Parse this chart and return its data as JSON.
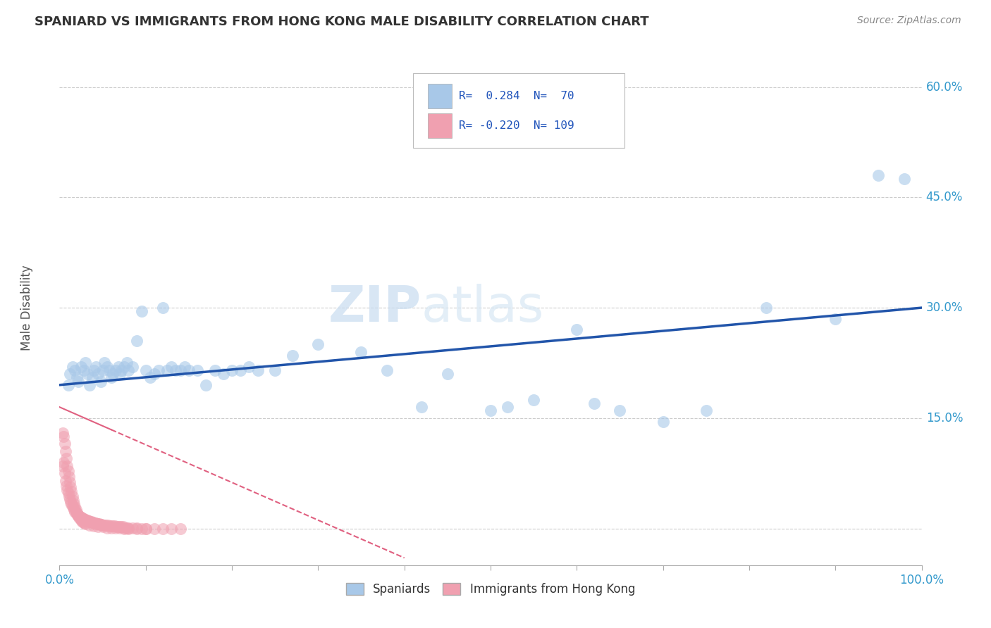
{
  "title": "SPANIARD VS IMMIGRANTS FROM HONG KONG MALE DISABILITY CORRELATION CHART",
  "source": "Source: ZipAtlas.com",
  "ylabel": "Male Disability",
  "yticks": [
    0.0,
    0.15,
    0.3,
    0.45,
    0.6
  ],
  "ytick_labels": [
    "",
    "15.0%",
    "30.0%",
    "45.0%",
    "60.0%"
  ],
  "xmin": 0.0,
  "xmax": 1.0,
  "ymin": -0.05,
  "ymax": 0.65,
  "blue_color": "#A8C8E8",
  "pink_color": "#F0A0B0",
  "trend_blue": "#2255AA",
  "trend_pink": "#E06080",
  "legend_blue_label": "Spaniards",
  "legend_pink_label": "Immigrants from Hong Kong",
  "spaniards_x": [
    0.01,
    0.012,
    0.015,
    0.018,
    0.02,
    0.022,
    0.025,
    0.028,
    0.03,
    0.032,
    0.035,
    0.038,
    0.04,
    0.042,
    0.045,
    0.048,
    0.05,
    0.052,
    0.055,
    0.058,
    0.06,
    0.062,
    0.065,
    0.068,
    0.07,
    0.072,
    0.075,
    0.078,
    0.08,
    0.085,
    0.09,
    0.095,
    0.1,
    0.105,
    0.11,
    0.115,
    0.12,
    0.125,
    0.13,
    0.135,
    0.14,
    0.145,
    0.15,
    0.16,
    0.17,
    0.18,
    0.19,
    0.2,
    0.21,
    0.22,
    0.23,
    0.25,
    0.27,
    0.3,
    0.35,
    0.38,
    0.42,
    0.45,
    0.5,
    0.52,
    0.55,
    0.6,
    0.62,
    0.65,
    0.7,
    0.75,
    0.82,
    0.9,
    0.95,
    0.98
  ],
  "spaniards_y": [
    0.195,
    0.21,
    0.22,
    0.215,
    0.205,
    0.2,
    0.22,
    0.215,
    0.225,
    0.21,
    0.195,
    0.205,
    0.215,
    0.22,
    0.21,
    0.2,
    0.215,
    0.225,
    0.22,
    0.215,
    0.205,
    0.21,
    0.215,
    0.22,
    0.21,
    0.215,
    0.22,
    0.225,
    0.215,
    0.22,
    0.255,
    0.295,
    0.215,
    0.205,
    0.21,
    0.215,
    0.3,
    0.215,
    0.22,
    0.215,
    0.215,
    0.22,
    0.215,
    0.215,
    0.195,
    0.215,
    0.21,
    0.215,
    0.215,
    0.22,
    0.215,
    0.215,
    0.235,
    0.25,
    0.24,
    0.215,
    0.165,
    0.21,
    0.16,
    0.165,
    0.175,
    0.27,
    0.17,
    0.16,
    0.145,
    0.16,
    0.3,
    0.285,
    0.48,
    0.475
  ],
  "hk_x": [
    0.004,
    0.005,
    0.006,
    0.007,
    0.008,
    0.009,
    0.01,
    0.011,
    0.012,
    0.013,
    0.014,
    0.015,
    0.016,
    0.017,
    0.018,
    0.019,
    0.02,
    0.021,
    0.022,
    0.023,
    0.024,
    0.025,
    0.026,
    0.027,
    0.028,
    0.029,
    0.03,
    0.031,
    0.032,
    0.033,
    0.034,
    0.035,
    0.036,
    0.037,
    0.038,
    0.039,
    0.04,
    0.041,
    0.042,
    0.043,
    0.044,
    0.045,
    0.046,
    0.047,
    0.048,
    0.049,
    0.05,
    0.052,
    0.054,
    0.056,
    0.058,
    0.06,
    0.062,
    0.064,
    0.066,
    0.068,
    0.07,
    0.072,
    0.074,
    0.076,
    0.078,
    0.08,
    0.085,
    0.09,
    0.095,
    0.1,
    0.11,
    0.12,
    0.13,
    0.14,
    0.004,
    0.005,
    0.006,
    0.007,
    0.008,
    0.009,
    0.01,
    0.011,
    0.012,
    0.013,
    0.014,
    0.015,
    0.016,
    0.017,
    0.018,
    0.019,
    0.02,
    0.021,
    0.022,
    0.023,
    0.024,
    0.025,
    0.026,
    0.027,
    0.028,
    0.029,
    0.03,
    0.035,
    0.04,
    0.045,
    0.05,
    0.055,
    0.06,
    0.065,
    0.07,
    0.075,
    0.08,
    0.09,
    0.1
  ],
  "hk_y": [
    0.085,
    0.09,
    0.075,
    0.065,
    0.058,
    0.052,
    0.048,
    0.044,
    0.04,
    0.036,
    0.033,
    0.03,
    0.028,
    0.025,
    0.023,
    0.022,
    0.02,
    0.019,
    0.018,
    0.017,
    0.016,
    0.015,
    0.014,
    0.014,
    0.013,
    0.012,
    0.012,
    0.011,
    0.011,
    0.01,
    0.01,
    0.009,
    0.009,
    0.009,
    0.008,
    0.008,
    0.007,
    0.007,
    0.007,
    0.006,
    0.006,
    0.006,
    0.006,
    0.005,
    0.005,
    0.005,
    0.004,
    0.004,
    0.004,
    0.004,
    0.003,
    0.003,
    0.003,
    0.003,
    0.002,
    0.002,
    0.002,
    0.002,
    0.002,
    0.001,
    0.001,
    0.001,
    0.001,
    0.001,
    0.0,
    0.0,
    0.0,
    0.0,
    0.0,
    0.0,
    0.13,
    0.125,
    0.115,
    0.105,
    0.095,
    0.085,
    0.078,
    0.07,
    0.063,
    0.056,
    0.05,
    0.044,
    0.038,
    0.033,
    0.029,
    0.025,
    0.022,
    0.019,
    0.017,
    0.015,
    0.013,
    0.012,
    0.01,
    0.009,
    0.008,
    0.007,
    0.006,
    0.004,
    0.003,
    0.002,
    0.002,
    0.001,
    0.001,
    0.001,
    0.001,
    0.0,
    0.0,
    0.0,
    0.0
  ],
  "blue_trend_x0": 0.0,
  "blue_trend_y0": 0.195,
  "blue_trend_x1": 1.0,
  "blue_trend_y1": 0.3,
  "pink_trend_x0": 0.0,
  "pink_trend_y0": 0.165,
  "pink_trend_x1": 0.4,
  "pink_trend_y1": -0.04
}
